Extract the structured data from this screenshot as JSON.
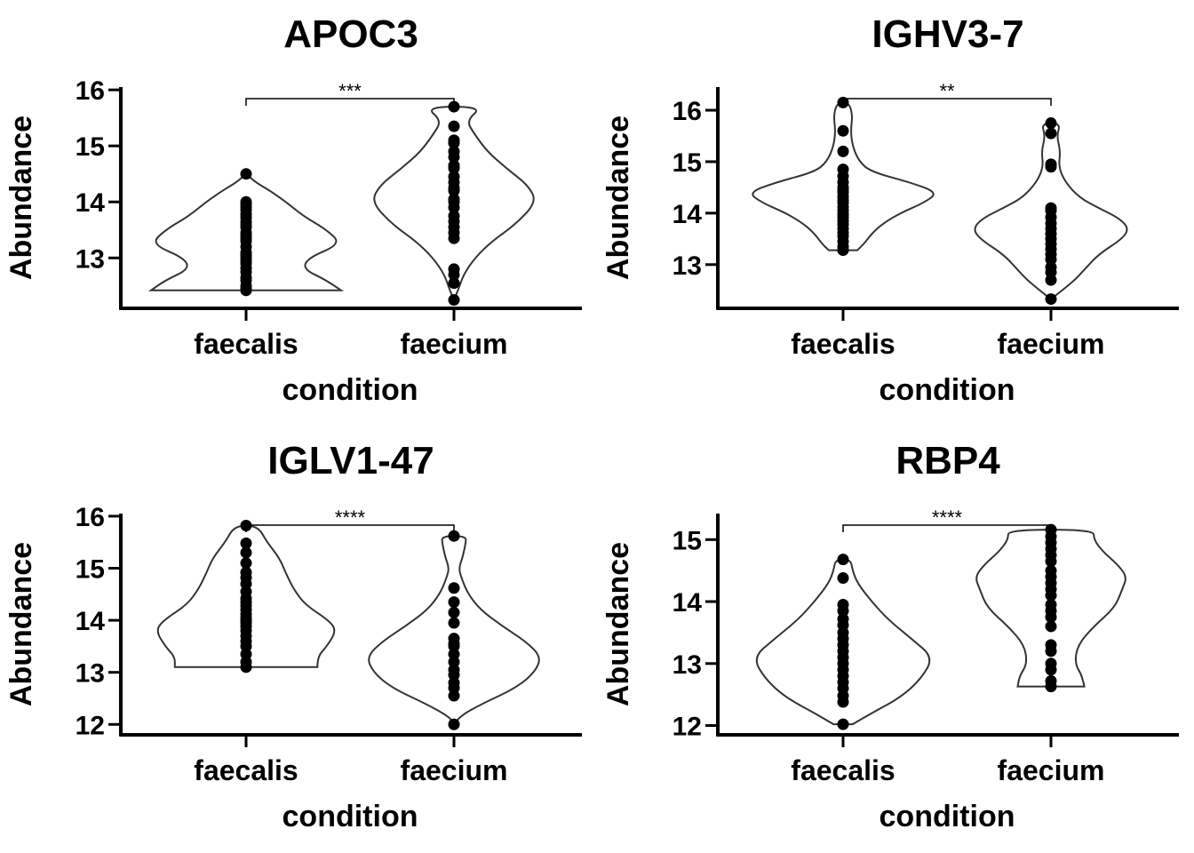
{
  "chart_data": [
    {
      "type": "violin",
      "title": "APOC3",
      "xlabel": "condition",
      "ylabel": "Abundance",
      "categories": [
        "faecalis",
        "faecium"
      ],
      "yticks": [
        13,
        14,
        15,
        16
      ],
      "ylim": [
        12.1,
        16.05
      ],
      "significance": "***",
      "violins": [
        {
          "min": 12.42,
          "max": 14.5,
          "profile": [
            [
              12.42,
              1.0
            ],
            [
              12.6,
              0.85
            ],
            [
              12.8,
              0.6
            ],
            [
              13.0,
              0.65
            ],
            [
              13.25,
              1.0
            ],
            [
              13.5,
              0.85
            ],
            [
              13.75,
              0.6
            ],
            [
              14.0,
              0.42
            ],
            [
              14.2,
              0.25
            ],
            [
              14.35,
              0.1
            ],
            [
              14.5,
              0.0
            ]
          ]
        },
        {
          "min": 12.25,
          "max": 15.7,
          "profile": [
            [
              12.25,
              0.0
            ],
            [
              12.45,
              0.05
            ],
            [
              12.7,
              0.1
            ],
            [
              13.0,
              0.22
            ],
            [
              13.3,
              0.4
            ],
            [
              13.6,
              0.65
            ],
            [
              14.0,
              0.87
            ],
            [
              14.3,
              0.78
            ],
            [
              14.6,
              0.55
            ],
            [
              14.9,
              0.35
            ],
            [
              15.2,
              0.22
            ],
            [
              15.45,
              0.13
            ],
            [
              15.7,
              0.3
            ]
          ]
        }
      ],
      "points": [
        [
          12.42,
          12.45,
          12.5,
          12.6,
          12.65,
          12.75,
          12.82,
          12.9,
          12.95,
          13.0,
          13.05,
          13.1,
          13.2,
          13.3,
          13.35,
          13.4,
          13.45,
          13.55,
          13.6,
          13.65,
          13.72,
          13.78,
          13.85,
          13.9,
          13.95,
          14.0,
          14.5
        ],
        [
          12.25,
          12.55,
          12.7,
          12.8,
          13.35,
          13.45,
          13.55,
          13.65,
          13.75,
          13.9,
          14.0,
          14.05,
          14.2,
          14.25,
          14.35,
          14.45,
          14.6,
          14.65,
          14.8,
          14.9,
          15.05,
          15.1,
          15.35,
          15.7
        ]
      ]
    },
    {
      "type": "violin",
      "title": "IGHV3-7",
      "xlabel": "condition",
      "ylabel": "Abundance",
      "categories": [
        "faecalis",
        "faecium"
      ],
      "yticks": [
        13,
        14,
        15,
        16
      ],
      "ylim": [
        12.15,
        16.45
      ],
      "significance": "**",
      "violins": [
        {
          "min": 13.28,
          "max": 16.15,
          "profile": [
            [
              13.28,
              0.15
            ],
            [
              13.4,
              0.22
            ],
            [
              13.6,
              0.3
            ],
            [
              13.8,
              0.42
            ],
            [
              14.0,
              0.6
            ],
            [
              14.2,
              0.85
            ],
            [
              14.4,
              1.0
            ],
            [
              14.6,
              0.7
            ],
            [
              14.8,
              0.3
            ],
            [
              15.0,
              0.17
            ],
            [
              15.3,
              0.1
            ],
            [
              15.6,
              0.08
            ],
            [
              15.9,
              0.1
            ],
            [
              16.15,
              0.06
            ]
          ]
        },
        {
          "min": 12.33,
          "max": 15.75,
          "profile": [
            [
              12.33,
              0.0
            ],
            [
              12.5,
              0.12
            ],
            [
              12.7,
              0.25
            ],
            [
              12.9,
              0.35
            ],
            [
              13.2,
              0.5
            ],
            [
              13.5,
              0.75
            ],
            [
              13.7,
              0.82
            ],
            [
              13.9,
              0.72
            ],
            [
              14.1,
              0.5
            ],
            [
              14.3,
              0.3
            ],
            [
              14.6,
              0.15
            ],
            [
              14.9,
              0.08
            ],
            [
              15.2,
              0.1
            ],
            [
              15.5,
              0.06
            ],
            [
              15.75,
              0.1
            ]
          ]
        }
      ],
      "points": [
        [
          13.28,
          13.35,
          13.45,
          13.55,
          13.62,
          13.7,
          13.78,
          13.85,
          13.92,
          13.98,
          14.05,
          14.12,
          14.2,
          14.25,
          14.32,
          14.4,
          14.45,
          14.5,
          14.6,
          14.72,
          14.85,
          15.2,
          15.6,
          16.15
        ],
        [
          12.33,
          12.7,
          12.85,
          12.95,
          13.1,
          13.2,
          13.3,
          13.4,
          13.5,
          13.6,
          13.7,
          13.8,
          13.92,
          14.05,
          14.1,
          14.9,
          14.95,
          15.55,
          15.75
        ]
      ]
    },
    {
      "type": "violin",
      "title": "IGLV1-47",
      "xlabel": "condition",
      "ylabel": "Abundance",
      "categories": [
        "faecalis",
        "faecium"
      ],
      "yticks": [
        12,
        13,
        14,
        15,
        16
      ],
      "ylim": [
        11.8,
        16.05
      ],
      "significance": "****",
      "violins": [
        {
          "min": 13.1,
          "max": 15.82,
          "profile": [
            [
              13.1,
              0.75
            ],
            [
              13.3,
              0.75
            ],
            [
              13.5,
              0.85
            ],
            [
              13.8,
              0.95
            ],
            [
              14.0,
              0.87
            ],
            [
              14.3,
              0.62
            ],
            [
              14.6,
              0.5
            ],
            [
              14.9,
              0.42
            ],
            [
              15.2,
              0.35
            ],
            [
              15.5,
              0.22
            ],
            [
              15.82,
              0.12
            ]
          ]
        },
        {
          "min": 12.0,
          "max": 15.62,
          "profile": [
            [
              12.0,
              0.0
            ],
            [
              12.15,
              0.05
            ],
            [
              12.4,
              0.3
            ],
            [
              12.7,
              0.65
            ],
            [
              13.0,
              0.85
            ],
            [
              13.3,
              0.92
            ],
            [
              13.6,
              0.75
            ],
            [
              13.9,
              0.5
            ],
            [
              14.2,
              0.28
            ],
            [
              14.5,
              0.15
            ],
            [
              14.8,
              0.08
            ],
            [
              15.0,
              0.05
            ],
            [
              15.2,
              0.09
            ],
            [
              15.45,
              0.12
            ],
            [
              15.62,
              0.13
            ]
          ]
        }
      ],
      "points": [
        [
          13.1,
          13.2,
          13.35,
          13.5,
          13.6,
          13.7,
          13.8,
          13.88,
          13.95,
          14.0,
          14.05,
          14.12,
          14.2,
          14.28,
          14.35,
          14.42,
          14.55,
          14.7,
          14.82,
          14.92,
          15.1,
          15.3,
          15.48,
          15.82
        ],
        [
          12.0,
          12.55,
          12.7,
          12.8,
          12.95,
          13.05,
          13.2,
          13.35,
          13.5,
          13.55,
          13.65,
          13.95,
          14.15,
          14.35,
          14.62,
          15.62
        ]
      ]
    },
    {
      "type": "violin",
      "title": "RBP4",
      "xlabel": "condition",
      "ylabel": "Abundance",
      "categories": [
        "faecalis",
        "faecium"
      ],
      "yticks": [
        12,
        13,
        14,
        15
      ],
      "ylim": [
        11.85,
        15.42
      ],
      "significance": "****",
      "violins": [
        {
          "min": 12.02,
          "max": 14.68,
          "profile": [
            [
              12.02,
              0.1
            ],
            [
              12.2,
              0.3
            ],
            [
              12.45,
              0.6
            ],
            [
              12.75,
              0.82
            ],
            [
              13.1,
              0.95
            ],
            [
              13.4,
              0.72
            ],
            [
              13.7,
              0.48
            ],
            [
              14.0,
              0.3
            ],
            [
              14.3,
              0.15
            ],
            [
              14.5,
              0.1
            ],
            [
              14.68,
              0.08
            ]
          ]
        },
        {
          "min": 12.63,
          "max": 15.16,
          "profile": [
            [
              12.63,
              0.35
            ],
            [
              12.8,
              0.33
            ],
            [
              13.0,
              0.25
            ],
            [
              13.3,
              0.28
            ],
            [
              13.6,
              0.45
            ],
            [
              13.9,
              0.67
            ],
            [
              14.2,
              0.75
            ],
            [
              14.4,
              0.8
            ],
            [
              14.6,
              0.7
            ],
            [
              14.8,
              0.55
            ],
            [
              15.0,
              0.45
            ],
            [
              15.16,
              0.45
            ]
          ]
        }
      ],
      "points": [
        [
          12.02,
          12.38,
          12.48,
          12.6,
          12.7,
          12.8,
          12.9,
          13.0,
          13.1,
          13.2,
          13.3,
          13.4,
          13.5,
          13.62,
          13.72,
          13.85,
          13.95,
          14.38,
          14.68
        ],
        [
          12.63,
          12.72,
          12.9,
          13.0,
          13.2,
          13.3,
          13.6,
          13.75,
          13.85,
          13.95,
          14.1,
          14.2,
          14.3,
          14.4,
          14.5,
          14.65,
          14.75,
          14.85,
          14.95,
          15.05,
          15.16
        ]
      ]
    }
  ]
}
